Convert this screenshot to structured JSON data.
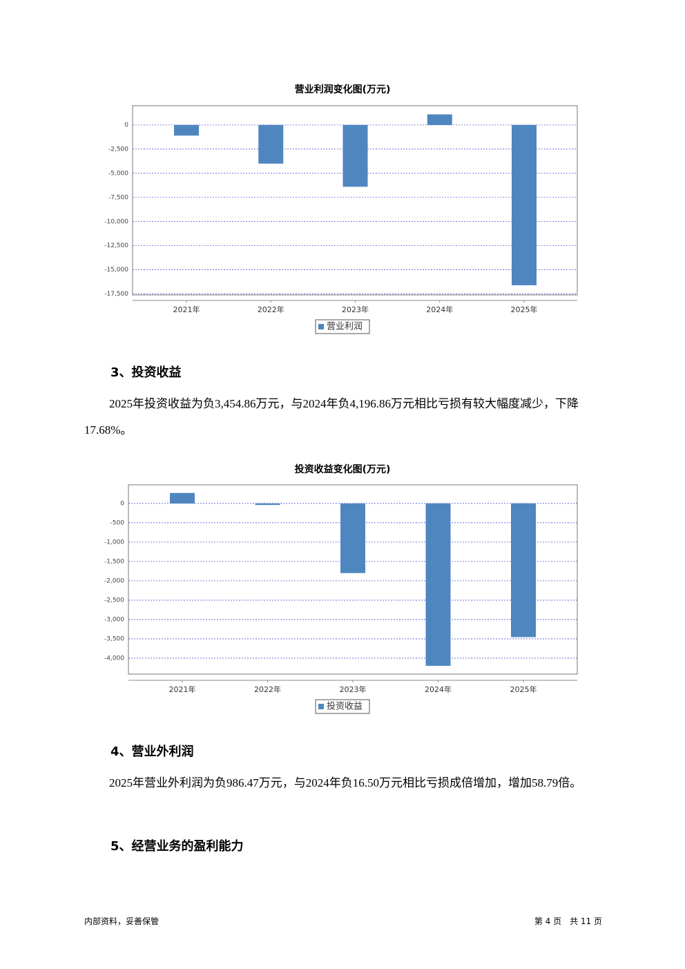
{
  "chart_data": [
    {
      "type": "bar",
      "title": "营业利润变化图(万元)",
      "categories": [
        "2021年",
        "2022年",
        "2023年",
        "2024年",
        "2025年"
      ],
      "series": [
        {
          "name": "营业利润",
          "color": "#4f86bf",
          "values": [
            -1100,
            -4000,
            -6400,
            1100,
            -16600
          ]
        }
      ],
      "ylim": [
        -17600,
        2000
      ],
      "yticks": [
        0,
        {
          "value": -2500,
          "label": "-2,500"
        },
        {
          "value": -5000,
          "label": "-5,000"
        },
        {
          "value": -7500,
          "label": "-7,500"
        },
        {
          "value": -10000,
          "label": "-10,000"
        },
        {
          "value": -12500,
          "label": "-12,500"
        },
        {
          "value": -15000,
          "label": "-15,000"
        },
        {
          "value": -17500,
          "label": "-17,500"
        }
      ],
      "grid": true
    },
    {
      "type": "bar",
      "title": "投资收益变化图(万元)",
      "categories": [
        "2021年",
        "2022年",
        "2023年",
        "2024年",
        "2025年"
      ],
      "series": [
        {
          "name": "投资收益",
          "color": "#4f86bf",
          "values": [
            270,
            -40,
            -1800,
            -4196.86,
            -3454.86
          ]
        }
      ],
      "ylim": [
        -4410,
        480
      ],
      "yticks": [
        0,
        -500,
        {
          "value": -1000,
          "label": "-1,000"
        },
        {
          "value": -1500,
          "label": "-1,500"
        },
        {
          "value": -2000,
          "label": "-2,000"
        },
        {
          "value": -2500,
          "label": "-2,500"
        },
        {
          "value": -3000,
          "label": "-3,000"
        },
        {
          "value": -3500,
          "label": "-3,500"
        },
        {
          "value": -4000,
          "label": "-4,000"
        }
      ],
      "grid": true
    }
  ],
  "sections": [
    {
      "heading": "3、投资收益",
      "paragraph": "2025年投资收益为负3,454.86万元，与2024年负4,196.86万元相比亏损有较大幅度减少，下降17.68%。"
    },
    {
      "heading": "4、营业外利润",
      "paragraph": "2025年营业外利润为负986.47万元，与2024年负16.50万元相比亏损成倍增加，增加58.79倍。"
    },
    {
      "heading": "5、经营业务的盈利能力"
    }
  ],
  "footer": {
    "left": "内部资料，妥善保管",
    "right": "第 4 页　共 11 页"
  }
}
